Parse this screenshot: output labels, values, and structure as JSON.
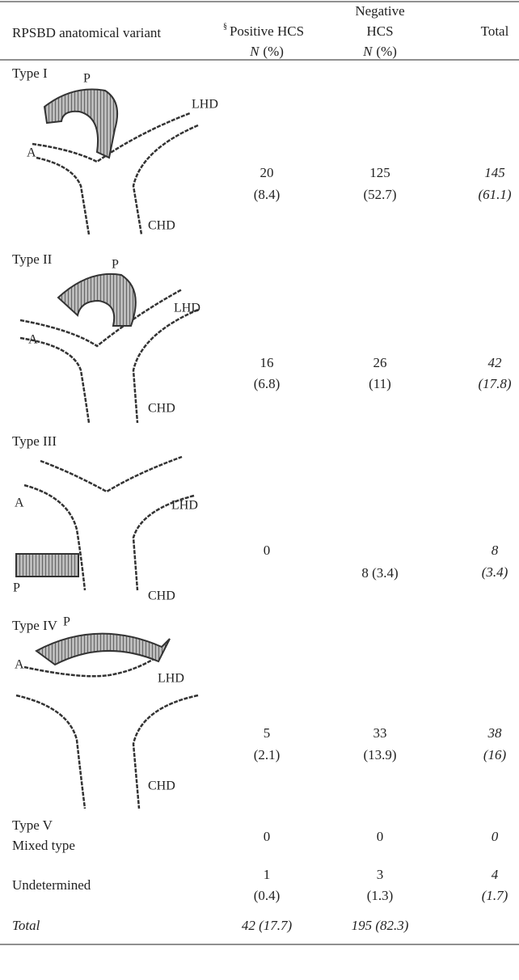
{
  "table": {
    "header": {
      "variant": {
        "text": "RPSBD anatomical variant",
        "note": "§"
      },
      "positive": {
        "lines": [
          "Positive HCS"
        ],
        "unit": {
          "symbol": "N",
          "text": "(%)"
        }
      },
      "negative": {
        "lines": [
          "Negative",
          "HCS"
        ],
        "unit": {
          "symbol": "N",
          "text": "(%)"
        }
      },
      "total": {
        "lines": [
          "Total"
        ]
      }
    },
    "rows": [
      {
        "label": [
          "Type I"
        ],
        "diagram_labels": [
          "P",
          "LHD",
          "A",
          "CHD"
        ],
        "positive": [
          "20",
          "(8.4)"
        ],
        "negative": [
          "125",
          "(52.7)"
        ],
        "total": [
          "145",
          "(61.1)"
        ]
      },
      {
        "label": [
          "Type II"
        ],
        "diagram_labels": [
          "P",
          "LHD",
          "A",
          "CHD"
        ],
        "positive": [
          "16",
          "(6.8)"
        ],
        "negative": [
          "26",
          "(11)"
        ],
        "total": [
          "42",
          "(17.8)"
        ]
      },
      {
        "label": [
          "Type III"
        ],
        "diagram_labels": [
          "A",
          "LHD",
          "P",
          "CHD"
        ],
        "positive": [
          "0"
        ],
        "negative": [
          "8 (3.4)"
        ],
        "total": [
          "8",
          "(3.4)"
        ]
      },
      {
        "label": [
          "Type IV"
        ],
        "diagram_labels": [
          "P",
          "A",
          "LHD",
          "CHD"
        ],
        "positive": [
          "5",
          "(2.1)"
        ],
        "negative": [
          "33",
          "(13.9)"
        ],
        "total": [
          "38",
          "(16)"
        ]
      },
      {
        "label": [
          "Type V",
          "Mixed type"
        ],
        "positive": [
          "0"
        ],
        "negative": [
          "0"
        ],
        "total": [
          "0"
        ]
      },
      {
        "label": [
          "Undetermined"
        ],
        "positive": [
          "1",
          "(0.4)"
        ],
        "negative": [
          "3",
          "(1.3)"
        ],
        "total": [
          "4",
          "(1.7)"
        ]
      },
      {
        "label": [
          "Total"
        ],
        "positive": [
          "42 (17.7)"
        ],
        "negative": [
          "195 (82.3)"
        ]
      }
    ]
  }
}
